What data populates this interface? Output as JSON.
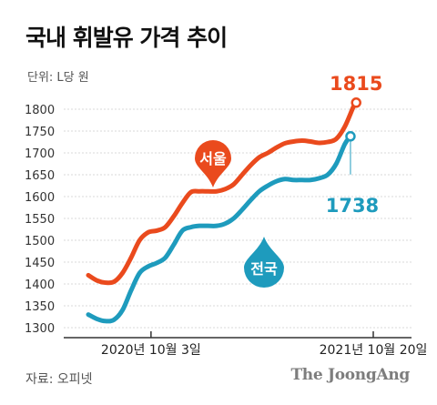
{
  "title": "국내 휘발유 가격 추이",
  "unit": "단위: L당 원",
  "source": "자료: 오피넷",
  "brand": "The JoongAng",
  "colors": {
    "seoul": "#ea4a1d",
    "national": "#1e9bbd",
    "grid": "#d8d8d8"
  },
  "chart_data": {
    "type": "line",
    "title": "국내 휘발유 가격 추이",
    "ylabel": "단위: L당 원",
    "ylim": [
      1300,
      1800
    ],
    "yticks": [
      1300,
      1350,
      1400,
      1450,
      1500,
      1550,
      1600,
      1650,
      1700,
      1750,
      1800
    ],
    "xlim": [
      0,
      100
    ],
    "xticks": [
      {
        "x": 22,
        "label": "2020년 10월 3일"
      },
      {
        "x": 100,
        "label": "2021년 10월 20일"
      }
    ],
    "grid": true,
    "series": [
      {
        "name": "서울",
        "color": "#ea4a1d",
        "end_label": "1815",
        "points": [
          [
            0,
            1420
          ],
          [
            3,
            1408
          ],
          [
            6,
            1403
          ],
          [
            9,
            1405
          ],
          [
            12,
            1425
          ],
          [
            15,
            1460
          ],
          [
            18,
            1500
          ],
          [
            21,
            1518
          ],
          [
            24,
            1522
          ],
          [
            27,
            1530
          ],
          [
            30,
            1555
          ],
          [
            33,
            1585
          ],
          [
            36,
            1610
          ],
          [
            39,
            1612
          ],
          [
            42,
            1612
          ],
          [
            45,
            1612
          ],
          [
            48,
            1617
          ],
          [
            51,
            1628
          ],
          [
            54,
            1650
          ],
          [
            57,
            1672
          ],
          [
            60,
            1690
          ],
          [
            63,
            1700
          ],
          [
            66,
            1712
          ],
          [
            69,
            1722
          ],
          [
            72,
            1726
          ],
          [
            75,
            1728
          ],
          [
            78,
            1726
          ],
          [
            81,
            1723
          ],
          [
            84,
            1725
          ],
          [
            87,
            1732
          ],
          [
            90,
            1760
          ],
          [
            93,
            1805
          ],
          [
            94,
            1815
          ]
        ]
      },
      {
        "name": "전국",
        "color": "#1e9bbd",
        "end_label": "1738",
        "points": [
          [
            0,
            1330
          ],
          [
            3,
            1320
          ],
          [
            6,
            1315
          ],
          [
            9,
            1318
          ],
          [
            12,
            1340
          ],
          [
            15,
            1385
          ],
          [
            18,
            1425
          ],
          [
            21,
            1440
          ],
          [
            24,
            1448
          ],
          [
            27,
            1460
          ],
          [
            30,
            1490
          ],
          [
            33,
            1522
          ],
          [
            36,
            1530
          ],
          [
            39,
            1533
          ],
          [
            42,
            1533
          ],
          [
            45,
            1533
          ],
          [
            48,
            1538
          ],
          [
            51,
            1550
          ],
          [
            54,
            1570
          ],
          [
            57,
            1592
          ],
          [
            60,
            1612
          ],
          [
            63,
            1625
          ],
          [
            66,
            1635
          ],
          [
            69,
            1640
          ],
          [
            72,
            1638
          ],
          [
            75,
            1638
          ],
          [
            78,
            1638
          ],
          [
            81,
            1642
          ],
          [
            84,
            1650
          ],
          [
            87,
            1675
          ],
          [
            90,
            1720
          ],
          [
            92,
            1738
          ]
        ]
      }
    ],
    "annotations": [
      {
        "text": "서울",
        "series": 0
      },
      {
        "text": "전국",
        "series": 1
      }
    ]
  }
}
